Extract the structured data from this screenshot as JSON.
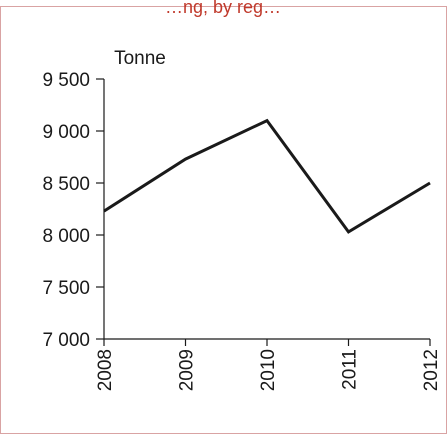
{
  "chart_data": {
    "type": "line",
    "title": "…ng, by reg…",
    "ylabel": "Tonne",
    "xlabel": "",
    "x": [
      "2008",
      "2009",
      "2010",
      "2011",
      "2012"
    ],
    "series": [
      {
        "values": [
          8230,
          8730,
          9100,
          8030,
          8500
        ]
      }
    ],
    "ylim": [
      7000,
      9500
    ],
    "yticks": [
      7000,
      7500,
      8000,
      8500,
      9000,
      9500
    ],
    "ytick_labels": [
      "7 000",
      "7 500",
      "8 000",
      "8 500",
      "9 000",
      "9 500"
    ],
    "grid": false,
    "legend": "none",
    "colors": {
      "line": "#1a1a1a",
      "frame": "#d9a3a3",
      "axis": "#1a1a1a"
    }
  }
}
